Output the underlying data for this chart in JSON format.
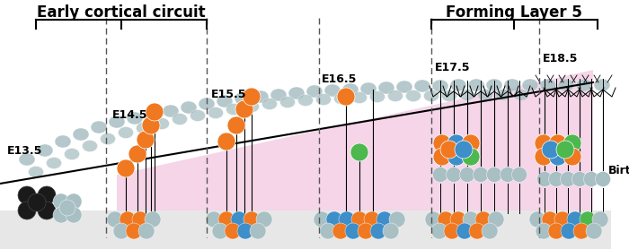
{
  "title_left": "Early cortical circuit",
  "title_right": "Forming Layer 5",
  "birth_label": "Birth",
  "time_labels": [
    "E13.5",
    "E14.5",
    "E15.5",
    "E16.5",
    "E17.5",
    "E18.5"
  ],
  "bg_color": "#ffffff",
  "pink_color": "#f2c8e0",
  "gray_cell_color": "#a8bfc4",
  "orange_color": "#f07820",
  "blue_color": "#3d8ec9",
  "green_color": "#4db84d",
  "black_color": "#1a1a1a",
  "figsize": [
    7.0,
    2.78
  ],
  "dpi": 100
}
